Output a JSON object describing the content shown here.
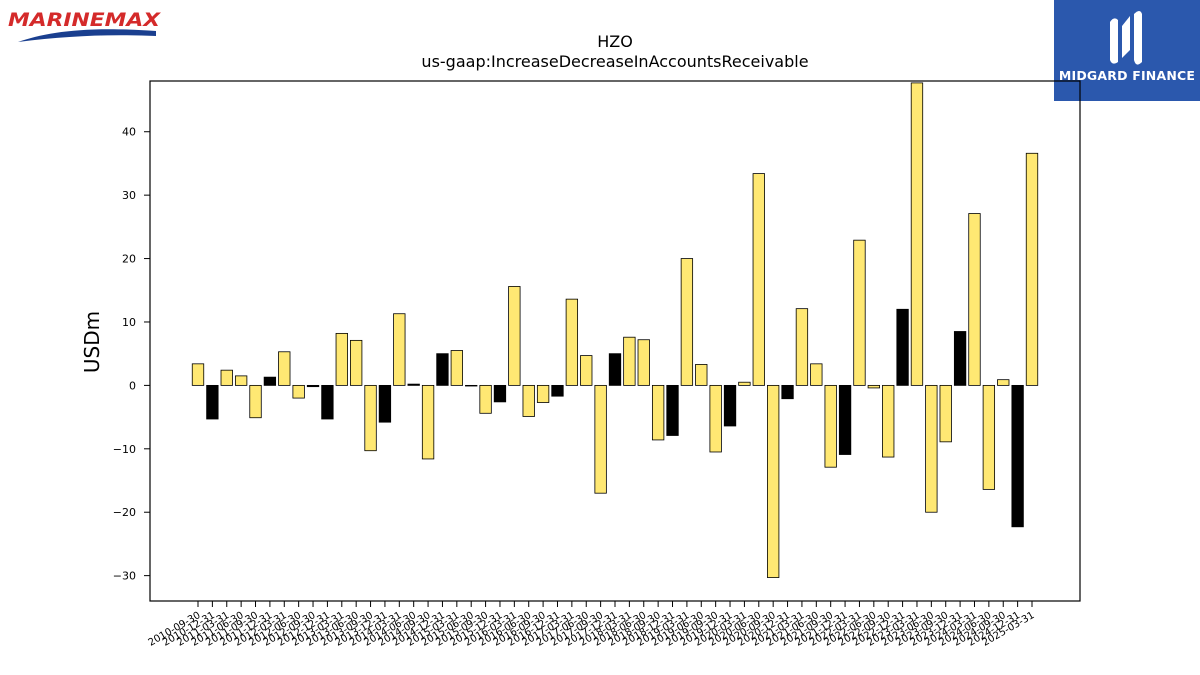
{
  "branding": {
    "left_logo": "MARINEMAX",
    "right_logo": "MIDGARD FINANCE"
  },
  "colors": {
    "bar_positive": "#ffe873",
    "bar_negative": "#000000",
    "right_logo_bg": "#2b58ad",
    "left_logo_red": "#d42a2a",
    "left_logo_blue": "#1a3f8f"
  },
  "chart_data": {
    "type": "bar",
    "title": "HZO",
    "subtitle": "us-gaap:IncreaseDecreaseInAccountsReceivable",
    "ylabel": "USDm",
    "xlabel": "",
    "ylim": [
      -34,
      48
    ],
    "yticks": [
      -30,
      -20,
      -10,
      0,
      10,
      20,
      30,
      40
    ],
    "ytick_labels": [
      "−30",
      "−20",
      "−10",
      "0",
      "10",
      "20",
      "30",
      "40"
    ],
    "grid": false,
    "categories": [
      "2010-09-30",
      "2010-12-31",
      "2011-03-31",
      "2011-06-30",
      "2011-09-30",
      "2011-12-31",
      "2012-03-31",
      "2012-06-30",
      "2012-09-30",
      "2012-12-31",
      "2013-03-31",
      "2013-06-30",
      "2013-09-30",
      "2013-12-31",
      "2014-03-31",
      "2014-06-30",
      "2014-09-30",
      "2014-12-31",
      "2015-03-31",
      "2015-06-30",
      "2015-09-30",
      "2015-12-31",
      "2016-03-31",
      "2016-06-30",
      "2016-09-30",
      "2016-12-31",
      "2017-03-31",
      "2017-06-30",
      "2017-09-30",
      "2017-12-31",
      "2018-03-31",
      "2018-06-30",
      "2018-09-30",
      "2018-12-31",
      "2019-03-31",
      "2019-06-30",
      "2019-09-30",
      "2019-12-31",
      "2020-03-31",
      "2020-06-30",
      "2020-09-30",
      "2020-12-31",
      "2021-03-31",
      "2021-06-30",
      "2021-09-30",
      "2021-12-31",
      "2022-03-31",
      "2022-06-30",
      "2022-09-30",
      "2022-12-31",
      "2023-03-31",
      "2023-06-30",
      "2023-09-30",
      "2023-12-31",
      "2024-03-31",
      "2024-06-30",
      "2024-09-30",
      "2024-12-31",
      "2025-03-31"
    ],
    "values": [
      3.4,
      -5.3,
      2.4,
      1.5,
      -5.1,
      1.3,
      5.3,
      -2.0,
      -0.2,
      -5.3,
      8.2,
      7.1,
      -10.3,
      -5.8,
      11.3,
      0.2,
      -11.6,
      5.0,
      5.5,
      -0.1,
      -4.4,
      -2.6,
      15.6,
      -4.9,
      -2.7,
      -1.7,
      13.6,
      4.7,
      -17.0,
      5.0,
      7.6,
      7.2,
      -8.6,
      -7.9,
      20.0,
      3.3,
      -10.5,
      -6.4,
      0.5,
      33.4,
      -30.3,
      -2.1,
      12.1,
      3.4,
      -12.9,
      -10.9,
      22.9,
      -0.4,
      -11.3,
      12.0,
      47.7,
      -20.0,
      -8.9,
      8.5,
      27.1,
      -16.4,
      0.9,
      -22.3,
      36.6
    ],
    "bar_colors": [
      "yellow",
      "black",
      "yellow",
      "yellow",
      "yellow",
      "black",
      "yellow",
      "yellow",
      "black",
      "black",
      "yellow",
      "yellow",
      "yellow",
      "black",
      "yellow",
      "black",
      "yellow",
      "black",
      "yellow",
      "black",
      "yellow",
      "black",
      "yellow",
      "yellow",
      "yellow",
      "black",
      "yellow",
      "yellow",
      "yellow",
      "black",
      "yellow",
      "yellow",
      "yellow",
      "black",
      "yellow",
      "yellow",
      "yellow",
      "black",
      "yellow",
      "yellow",
      "yellow",
      "black",
      "yellow",
      "yellow",
      "yellow",
      "black",
      "yellow",
      "yellow",
      "yellow",
      "black",
      "yellow",
      "yellow",
      "yellow",
      "black",
      "yellow",
      "yellow",
      "yellow",
      "black",
      "yellow"
    ]
  }
}
